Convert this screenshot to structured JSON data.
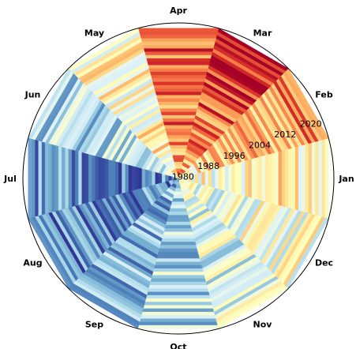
{
  "chart_data": {
    "type": "heatmap",
    "layout": "polar",
    "title": "",
    "theta_categories": [
      "Jan",
      "Feb",
      "Mar",
      "Apr",
      "May",
      "Jun",
      "Jul",
      "Aug",
      "Sep",
      "Oct",
      "Nov",
      "Dec"
    ],
    "radial_axis": {
      "range": [
        1979,
        2023
      ],
      "tick_labels": [
        "1980",
        "1988",
        "1996",
        "2004",
        "2012",
        "2020"
      ],
      "tick_values": [
        1980,
        1988,
        1996,
        2004,
        2012,
        2020
      ]
    },
    "colormap": "RdYlBu_r",
    "color_range": [
      -1,
      1
    ],
    "month_bias": [
      0.05,
      0.3,
      0.6,
      0.55,
      0.05,
      -0.35,
      -0.7,
      -0.7,
      -0.55,
      -0.4,
      -0.2,
      -0.1
    ],
    "trend_per_year": [
      0.004,
      0.01,
      0.01,
      0.004,
      -0.002,
      -0.002,
      0.0,
      0.0,
      0.0,
      0.0,
      0.0,
      0.002
    ],
    "grid": false,
    "legend": "none"
  }
}
